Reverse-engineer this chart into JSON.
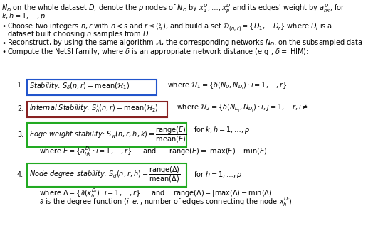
{
  "bg_color": "#ffffff",
  "text_color": "#000000",
  "fs": 7.0
}
